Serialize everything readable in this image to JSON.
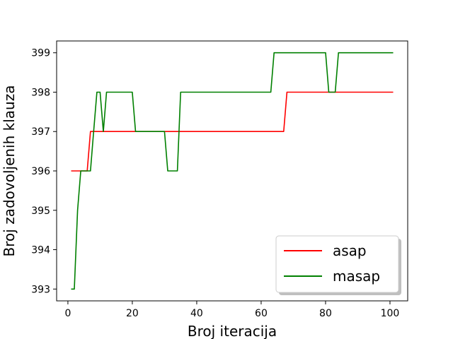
{
  "chart_data": {
    "type": "line",
    "xlabel": "Broj iteracija",
    "ylabel": "Broj zadovoljenih klauza",
    "xlim": [
      -3.5,
      105.5
    ],
    "ylim": [
      392.7,
      399.3
    ],
    "xticks": [
      0,
      20,
      40,
      60,
      80,
      100
    ],
    "yticks": [
      393,
      394,
      395,
      396,
      397,
      398,
      399
    ],
    "grid": false,
    "legend_position": "lower-right",
    "series": [
      {
        "name": "asap",
        "color": "#ff0000",
        "x": [
          1,
          6,
          7,
          67,
          68,
          101
        ],
        "y": [
          396,
          396,
          397,
          397,
          398,
          398
        ]
      },
      {
        "name": "masap",
        "color": "#008000",
        "x": [
          1,
          2,
          3,
          4,
          5,
          7,
          8,
          9,
          10,
          11,
          12,
          20,
          21,
          30,
          31,
          34,
          35,
          63,
          64,
          80,
          81,
          83,
          84,
          101
        ],
        "y": [
          393,
          393,
          395,
          396,
          396,
          396,
          397,
          398,
          398,
          397,
          398,
          398,
          397,
          397,
          396,
          396,
          398,
          398,
          399,
          399,
          398,
          398,
          399,
          399
        ]
      }
    ]
  }
}
